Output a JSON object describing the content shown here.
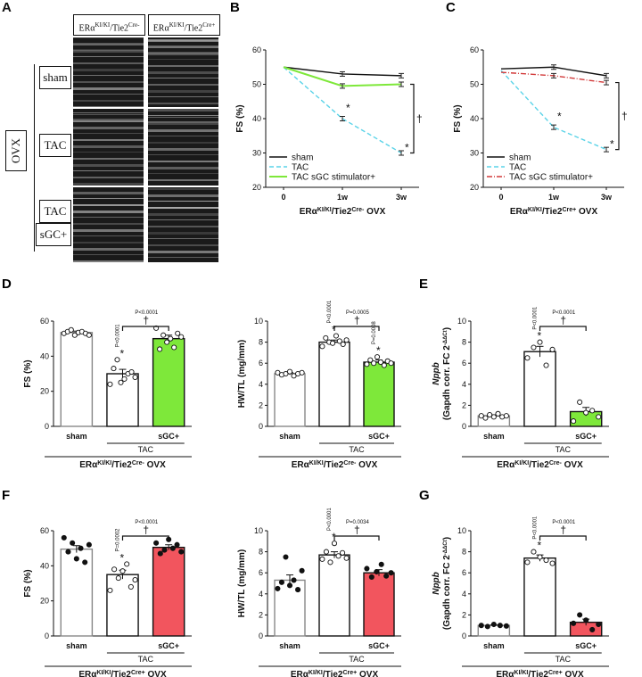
{
  "panels": {
    "A": "A",
    "B": "B",
    "C": "C",
    "D": "D",
    "E": "E",
    "F": "F",
    "G": "G"
  },
  "echo": {
    "col1": "ERα",
    "col1_sup": "KI/KI",
    "col1_tail": "/Tie2",
    "col1_cre": "Cre-",
    "col2": "ERα",
    "col2_sup": "KI/KI",
    "col2_tail": "/Tie2",
    "col2_cre": "Cre+",
    "ovx": "OVX",
    "rows": [
      "sham",
      "TAC",
      "TAC",
      "sGC+"
    ]
  },
  "colors": {
    "sham": "#111111",
    "tac": "#5ad3e8",
    "sgc_green": "#7ee83a",
    "sgc_red": "#f2555e",
    "red_dash": "#d23a3a"
  },
  "chart_data": [
    {
      "id": "B",
      "type": "line",
      "xlabel_main": "ERα",
      "xlabel_sup": "KI/KI",
      "xlabel_tail": "/Tie2",
      "xlabel_cre": "Cre-",
      "xlabel_end": " OVX",
      "ylabel": "FS (%)",
      "ylim": [
        20,
        60
      ],
      "yticks": [
        20,
        30,
        40,
        50,
        60
      ],
      "categories": [
        "0",
        "1w",
        "3w"
      ],
      "series": [
        {
          "name": "sham",
          "values": [
            55,
            53,
            52.5
          ]
        },
        {
          "name": "TAC",
          "values": [
            55,
            40,
            30
          ]
        },
        {
          "name": "TAC sGC stimulator+",
          "values": [
            55,
            49.5,
            50
          ]
        }
      ],
      "annotations": [
        "*",
        "*",
        "†"
      ]
    },
    {
      "id": "C",
      "type": "line",
      "xlabel_main": "ERα",
      "xlabel_sup": "KI/KI",
      "xlabel_tail": "/Tie2",
      "xlabel_cre": "Cre+",
      "xlabel_end": " OVX",
      "ylabel": "FS (%)",
      "ylim": [
        20,
        60
      ],
      "yticks": [
        20,
        30,
        40,
        50,
        60
      ],
      "categories": [
        "0",
        "1w",
        "3w"
      ],
      "series": [
        {
          "name": "sham",
          "values": [
            54.5,
            55,
            52.5
          ]
        },
        {
          "name": "TAC",
          "values": [
            54,
            37.5,
            31
          ]
        },
        {
          "name": "TAC sGC stimulator+",
          "values": [
            53.5,
            52.5,
            50.5
          ]
        }
      ],
      "annotations": [
        "*",
        "*",
        "†"
      ]
    },
    {
      "id": "D1",
      "type": "bar",
      "ylabel": "FS (%)",
      "ylim": [
        0,
        60
      ],
      "yticks": [
        0,
        20,
        40,
        60
      ],
      "categories": [
        "sham",
        "",
        "sGC+"
      ],
      "group_label": "TAC",
      "values": [
        53.5,
        30,
        50
      ],
      "err": [
        0.8,
        2.5,
        2
      ],
      "points": [
        [
          53,
          54,
          55,
          52,
          53.5,
          54,
          53,
          52
        ],
        [
          24,
          33,
          38,
          25,
          27,
          30,
          31,
          28
        ],
        [
          56,
          44,
          52,
          48,
          50,
          45,
          53,
          51
        ]
      ],
      "pvals": [
        "P<0.0001",
        "P<0.0001"
      ],
      "stars": [
        "*",
        "†"
      ],
      "xlabel_main": "ERα",
      "xlabel_sup": "KI/KI",
      "xlabel_tail": "/Tie2",
      "xlabel_cre": "Cre-",
      "xlabel_end": " OVX"
    },
    {
      "id": "D2",
      "type": "bar",
      "ylabel": "HW/TL (mg/mm)",
      "ylim": [
        0,
        10
      ],
      "yticks": [
        0,
        2,
        4,
        6,
        8,
        10
      ],
      "categories": [
        "sham",
        "",
        "sGC+"
      ],
      "group_label": "TAC",
      "values": [
        5.0,
        8.0,
        6.1
      ],
      "err": [
        0.1,
        0.2,
        0.2
      ],
      "points": [
        [
          5.1,
          4.9,
          5.0,
          5.2,
          4.8,
          5.0,
          5.1
        ],
        [
          7.6,
          8.4,
          8.0,
          7.9,
          8.6,
          8.1,
          7.8,
          8.2
        ],
        [
          5.9,
          6.3,
          6.0,
          6.6,
          6.1,
          5.8,
          6.2,
          6.0
        ]
      ],
      "pvals": [
        "P<0.0001",
        "P=0.0008",
        "P=0.0005"
      ],
      "stars": [
        "*",
        "*",
        "†"
      ],
      "xlabel_main": "ERα",
      "xlabel_sup": "KI/KI",
      "xlabel_tail": "/Tie2",
      "xlabel_cre": "Cre-",
      "xlabel_end": " OVX"
    },
    {
      "id": "E",
      "type": "bar",
      "ylabel_main": "Nppb",
      "ylabel_sub": "(Gapdh corr. FC 2",
      "ylabel_sup": "-ΔΔCt",
      "ylabel_end": ")",
      "ylim": [
        0,
        10
      ],
      "yticks": [
        0,
        2,
        4,
        6,
        8,
        10
      ],
      "categories": [
        "sham",
        "",
        "sGC+"
      ],
      "group_label": "TAC",
      "values": [
        1.0,
        7.1,
        1.4
      ],
      "err": [
        0.1,
        0.5,
        0.4
      ],
      "points": [
        [
          1.0,
          0.8,
          1.1,
          0.9,
          1.2,
          0.9,
          1.0
        ],
        [
          6.5,
          7.5,
          8.0,
          5.8,
          7.3
        ],
        [
          0.5,
          2.3,
          1.3,
          1.5,
          0.9
        ]
      ],
      "pvals": [
        "P<0.0001",
        "P<0.0001"
      ],
      "stars": [
        "*",
        "†"
      ],
      "xlabel_main": "ERα",
      "xlabel_sup": "KI/KI",
      "xlabel_tail": "/Tie2",
      "xlabel_cre": "Cre-",
      "xlabel_end": " OVX"
    },
    {
      "id": "F1",
      "type": "bar",
      "ylabel": "FS (%)",
      "ylim": [
        0,
        60
      ],
      "yticks": [
        0,
        20,
        40,
        60
      ],
      "categories": [
        "sham",
        "",
        "sGC+"
      ],
      "group_label": "TAC",
      "values": [
        49.5,
        35,
        50.5
      ],
      "err": [
        2,
        2.5,
        1.5
      ],
      "points": [
        [
          56,
          48,
          53,
          44,
          50,
          42,
          52
        ],
        [
          26,
          38,
          33,
          37,
          41,
          28,
          32
        ],
        [
          53,
          47,
          49,
          55,
          50,
          52,
          48
        ]
      ],
      "pvals": [
        "P=0.0002",
        "P<0.0001"
      ],
      "stars": [
        "*",
        "†"
      ],
      "xlabel_main": "ERα",
      "xlabel_sup": "KI/KI",
      "xlabel_tail": "/Tie2",
      "xlabel_cre": "Cre+",
      "xlabel_end": " OVX"
    },
    {
      "id": "F2",
      "type": "bar",
      "ylabel": "HW/TL (mg/mm)",
      "ylim": [
        0,
        10
      ],
      "yticks": [
        0,
        2,
        4,
        6,
        8,
        10
      ],
      "categories": [
        "sham",
        "",
        "sGC+"
      ],
      "group_label": "TAC",
      "values": [
        5.3,
        7.7,
        6.0
      ],
      "err": [
        0.5,
        0.3,
        0.3
      ],
      "points": [
        [
          4.5,
          5.1,
          7.5,
          4.8,
          5.3,
          4.4,
          6.2
        ],
        [
          7.3,
          8.0,
          7.0,
          8.8,
          7.6,
          7.9,
          7.4
        ],
        [
          6.4,
          5.6,
          6.1,
          6.8,
          5.7,
          6.0
        ]
      ],
      "pvals": [
        "P<0.0001",
        "P=0.0034"
      ],
      "stars": [
        "*",
        "†"
      ],
      "xlabel_main": "ERα",
      "xlabel_sup": "KI/KI",
      "xlabel_tail": "/Tie2",
      "xlabel_cre": "Cre+",
      "xlabel_end": " OVX"
    },
    {
      "id": "G",
      "type": "bar",
      "ylabel_main": "Nppb",
      "ylabel_sub": "(Gapdh corr. FC 2",
      "ylabel_sup": "-ΔΔCt",
      "ylabel_end": ")",
      "ylim": [
        0,
        10
      ],
      "yticks": [
        0,
        2,
        4,
        6,
        8,
        10
      ],
      "categories": [
        "sham",
        "",
        "sGC+"
      ],
      "group_label": "TAC",
      "values": [
        1.0,
        7.4,
        1.3
      ],
      "err": [
        0.05,
        0.3,
        0.3
      ],
      "points": [
        [
          1.0,
          0.9,
          1.1,
          1.0,
          0.95
        ],
        [
          7.0,
          8.0,
          7.5,
          7.2,
          6.9
        ],
        [
          1.2,
          2.0,
          1.5,
          0.6,
          1.1
        ]
      ],
      "pvals": [
        "P<0.0001",
        "P<0.0001"
      ],
      "stars": [
        "*",
        "†"
      ],
      "xlabel_main": "ERα",
      "xlabel_sup": "KI/KI",
      "xlabel_tail": "/Tie2",
      "xlabel_cre": "Cre+",
      "xlabel_end": " OVX"
    }
  ]
}
